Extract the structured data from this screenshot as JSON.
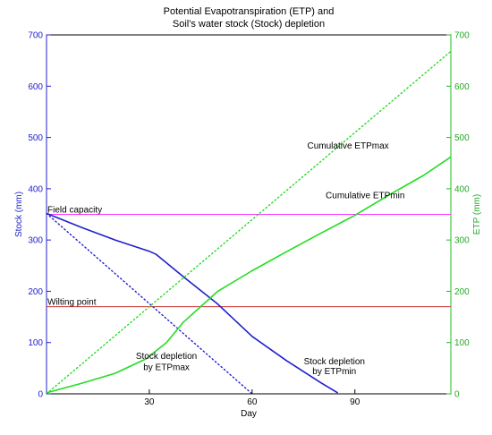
{
  "chart_data": {
    "type": "line",
    "title": "Potential Evapotranspiration (ETP) and\nSoil's water stock (Stock) depletion",
    "xlabel": "Day",
    "ylabel_left": "Stock (mm)",
    "ylabel_right": "ETP (mm)",
    "xlim": [
      0,
      118
    ],
    "ylim_left": [
      0,
      700
    ],
    "ylim_right": [
      0,
      700
    ],
    "xticks": [
      30,
      60,
      90
    ],
    "yticks_left": [
      0,
      100,
      200,
      300,
      400,
      500,
      600,
      700
    ],
    "yticks_right": [
      0,
      100,
      200,
      300,
      400,
      500,
      600,
      700
    ],
    "grid": false,
    "colors": {
      "stock": "#1f1fcc",
      "etp": "#22dd22",
      "field_capacity": "#ff33ff",
      "wilting_point": "#cc3333"
    },
    "reference_lines": [
      {
        "label": "Field capacity",
        "y": 350,
        "axis": "left",
        "color": "#ff33ff"
      },
      {
        "label": "Wilting point",
        "y": 170,
        "axis": "left",
        "color": "#cc3333"
      }
    ],
    "series": [
      {
        "axis": "left",
        "style": "solid",
        "color": "#1f1fcc",
        "points": [
          [
            0,
            352
          ],
          [
            10,
            325
          ],
          [
            20,
            300
          ],
          [
            30,
            278
          ],
          [
            32,
            272
          ],
          [
            40,
            228
          ],
          [
            50,
            175
          ],
          [
            60,
            112
          ],
          [
            70,
            65
          ],
          [
            80,
            22
          ],
          [
            85,
            2
          ]
        ]
      },
      {
        "axis": "left",
        "style": "dotted",
        "color": "#1f1fcc",
        "points": [
          [
            0,
            352
          ],
          [
            60,
            0
          ]
        ]
      },
      {
        "axis": "right",
        "style": "solid",
        "color": "#22dd22",
        "points": [
          [
            0,
            2
          ],
          [
            10,
            20
          ],
          [
            20,
            40
          ],
          [
            29,
            68
          ],
          [
            35,
            100
          ],
          [
            40,
            140
          ],
          [
            50,
            200
          ],
          [
            60,
            240
          ],
          [
            70,
            277
          ],
          [
            80,
            313
          ],
          [
            90,
            348
          ],
          [
            100,
            388
          ],
          [
            110,
            426
          ],
          [
            118,
            462
          ]
        ]
      },
      {
        "axis": "right",
        "style": "dotted",
        "color": "#22dd22",
        "points": [
          [
            0,
            0
          ],
          [
            118,
            668
          ]
        ]
      }
    ],
    "annotations": [
      {
        "text": "Cumulative ETPmax",
        "x": 88,
        "y": 478,
        "axis": "right"
      },
      {
        "text": "Cumulative ETPmin",
        "x": 93,
        "y": 381,
        "axis": "right"
      },
      {
        "text": "Stock depletion",
        "x": 35,
        "y": 68,
        "axis": "left"
      },
      {
        "text": "by ETPmax",
        "x": 35,
        "y": 46,
        "axis": "left"
      },
      {
        "text": "Stock depletion",
        "x": 84,
        "y": 58,
        "axis": "left"
      },
      {
        "text": "by ETPmin",
        "x": 84,
        "y": 38,
        "axis": "left"
      }
    ]
  }
}
